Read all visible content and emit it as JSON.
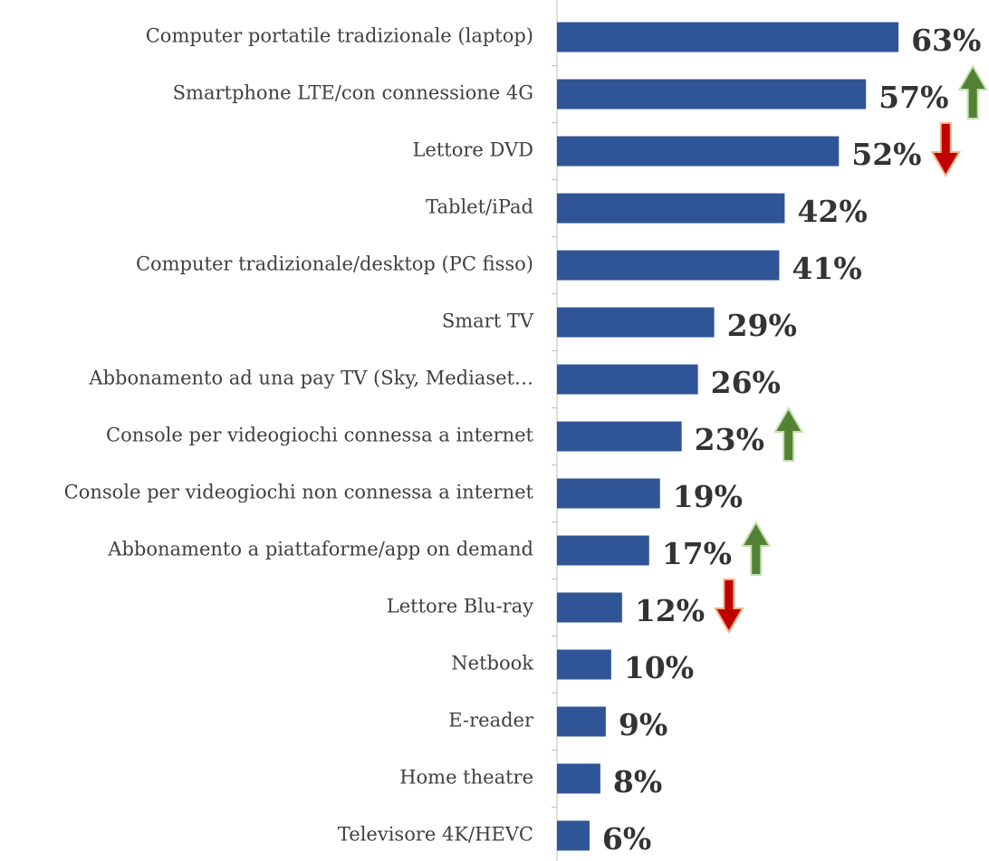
{
  "chart_data": {
    "type": "bar",
    "orientation": "horizontal",
    "categories": [
      "Computer portatile tradizionale (laptop)",
      "Smartphone LTE/con connessione 4G",
      "Lettore DVD",
      "Tablet/iPad",
      "Computer tradizionale/desktop (PC fisso)",
      "Smart TV",
      "Abbonamento ad una pay TV (Sky, Mediaset…",
      "Console per videogiochi connessa a internet",
      "Console per videogiochi non connessa a internet",
      "Abbonamento a piattaforme/app on demand",
      "Lettore Blu-ray",
      "Netbook",
      "E-reader",
      "Home theatre",
      "Televisore 4K/HEVC"
    ],
    "values": [
      63,
      57,
      52,
      42,
      41,
      29,
      26,
      23,
      19,
      17,
      12,
      10,
      9,
      8,
      6
    ],
    "value_labels": [
      "63%",
      "57%",
      "52%",
      "42%",
      "41%",
      "29%",
      "26%",
      "23%",
      "19%",
      "17%",
      "12%",
      "10%",
      "9%",
      "8%",
      "6%"
    ],
    "color": "#2f5597",
    "xlim": [
      0,
      70
    ],
    "arrows": [
      null,
      "up",
      "down",
      null,
      null,
      null,
      null,
      "up",
      null,
      "up",
      "down",
      null,
      null,
      null,
      null
    ],
    "arrow_colors": {
      "up": "#548235",
      "down": "#c00000"
    }
  }
}
